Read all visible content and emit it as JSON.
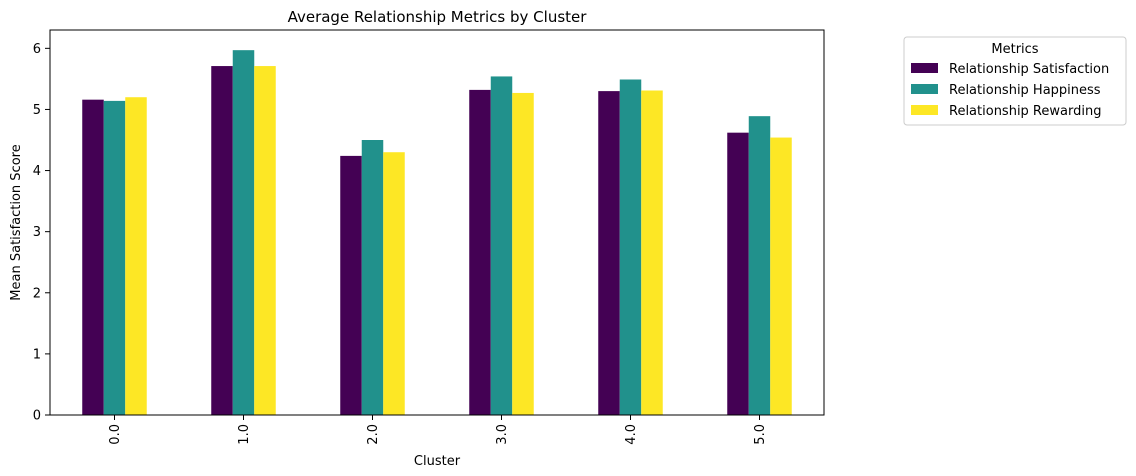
{
  "chart_data": {
    "type": "bar",
    "title": "Average Relationship Metrics by Cluster",
    "xlabel": "Cluster",
    "ylabel": "Mean Satisfaction Score",
    "categories": [
      "0.0",
      "1.0",
      "2.0",
      "3.0",
      "4.0",
      "5.0"
    ],
    "yticks": [
      "0",
      "1",
      "2",
      "3",
      "4",
      "5",
      "6"
    ],
    "ylim": [
      0,
      6.3
    ],
    "grid": false,
    "legend": {
      "title": "Metrics",
      "placement": "outside-top-right"
    },
    "series": [
      {
        "name": "Relationship Satisfaction",
        "color": "#440154",
        "values": [
          5.16,
          5.71,
          4.24,
          5.32,
          5.3,
          4.62
        ]
      },
      {
        "name": "Relationship Happiness",
        "color": "#21918c",
        "values": [
          5.14,
          5.97,
          4.5,
          5.54,
          5.49,
          4.89
        ]
      },
      {
        "name": "Relationship Rewarding",
        "color": "#fde725",
        "values": [
          5.2,
          5.71,
          4.3,
          5.27,
          5.31,
          4.54
        ]
      }
    ]
  }
}
